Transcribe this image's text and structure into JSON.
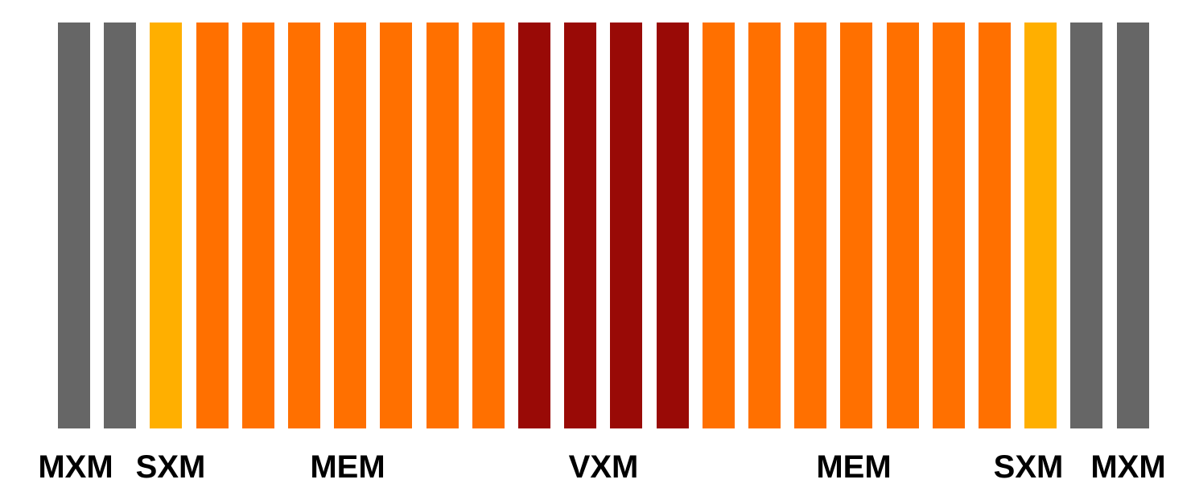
{
  "diagram": {
    "columns": [
      {
        "group": "MXM",
        "color": "#666666"
      },
      {
        "group": "MXM",
        "color": "#666666"
      },
      {
        "group": "SXM",
        "color": "#ffaf00"
      },
      {
        "group": "MEM",
        "color": "#ff7000"
      },
      {
        "group": "MEM",
        "color": "#ff7000"
      },
      {
        "group": "MEM",
        "color": "#ff7000"
      },
      {
        "group": "MEM",
        "color": "#ff7000"
      },
      {
        "group": "MEM",
        "color": "#ff7000"
      },
      {
        "group": "MEM",
        "color": "#ff7000"
      },
      {
        "group": "MEM",
        "color": "#ff7000"
      },
      {
        "group": "VXM",
        "color": "#990a06"
      },
      {
        "group": "VXM",
        "color": "#990a06"
      },
      {
        "group": "VXM",
        "color": "#990a06"
      },
      {
        "group": "VXM",
        "color": "#990a06"
      },
      {
        "group": "MEM",
        "color": "#ff7000"
      },
      {
        "group": "MEM",
        "color": "#ff7000"
      },
      {
        "group": "MEM",
        "color": "#ff7000"
      },
      {
        "group": "MEM",
        "color": "#ff7000"
      },
      {
        "group": "MEM",
        "color": "#ff7000"
      },
      {
        "group": "MEM",
        "color": "#ff7000"
      },
      {
        "group": "MEM",
        "color": "#ff7000"
      },
      {
        "group": "SXM",
        "color": "#ffaf00"
      },
      {
        "group": "MXM",
        "color": "#666666"
      },
      {
        "group": "MXM",
        "color": "#666666"
      }
    ],
    "labels": [
      "MXM",
      "SXM",
      "MEM",
      "VXM",
      "MEM",
      "SXM",
      "MXM"
    ]
  }
}
